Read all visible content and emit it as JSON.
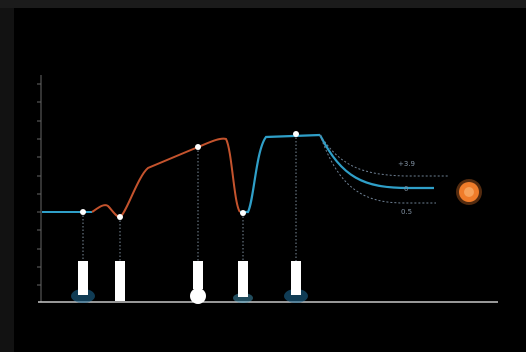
{
  "plot": {
    "series_colors": {
      "rise": "#c4532d",
      "fall": "#2f9fc8",
      "neutral": "#2b7bb0"
    },
    "nodes": [
      {
        "id": "n1",
        "state": "flat"
      },
      {
        "id": "n2",
        "state": "dip"
      },
      {
        "id": "n3",
        "state": "peak"
      },
      {
        "id": "n4",
        "state": "dip"
      },
      {
        "id": "n5",
        "state": "plateau"
      }
    ],
    "branch_labels": {
      "upper": "+3.9",
      "middle": "0",
      "lower": "0.5"
    },
    "target_color": "#f07c2a"
  }
}
